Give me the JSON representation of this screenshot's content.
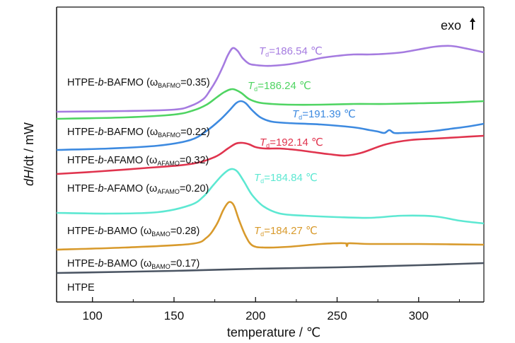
{
  "chart_data": {
    "type": "line",
    "xlabel": "temperature / ℃",
    "ylabel": "dH/dt / mW",
    "xlim": [
      78,
      340
    ],
    "xticks": [
      100,
      150,
      200,
      250,
      300
    ],
    "legend_note": "exo",
    "series": [
      {
        "name": "HTPE-b-BAFMO (ω_BAFMO=0.35)",
        "label_parts": [
          "HTPE-",
          "b",
          "-BAFMO (ω",
          "BAFMO",
          "=0.35)"
        ],
        "color": "#a57be0",
        "td": "T_d=186.54 ℃",
        "td_parts": [
          "T",
          "d",
          "=186.54 ℃"
        ],
        "x": [
          78,
          120,
          150,
          160,
          168,
          172,
          176,
          180,
          183,
          186,
          189,
          192,
          196,
          200,
          205,
          210,
          220,
          230,
          240,
          250,
          260,
          270,
          280,
          290,
          300,
          310,
          320,
          330,
          340
        ],
        "y": [
          158,
          157,
          155,
          150,
          140,
          128,
          113,
          94,
          78,
          68,
          72,
          82,
          90,
          92,
          93,
          93,
          91,
          87,
          82,
          79,
          77,
          77,
          76,
          74,
          70,
          66,
          65,
          69,
          74
        ]
      },
      {
        "name": "HTPE-b-BAFMO (ω_BAFMO=0.22)",
        "label_parts": [
          "HTPE-",
          "b",
          "-BAFMO (ω",
          "BAFMO",
          "=0.22)"
        ],
        "color": "#4fd462",
        "td": "T_d=186.24 ℃",
        "td_parts": [
          "T",
          "d",
          "=186.24 ℃"
        ],
        "x": [
          78,
          120,
          150,
          162,
          170,
          176,
          181,
          186,
          191,
          196,
          202,
          210,
          220,
          240,
          260,
          280,
          300,
          320,
          340
        ],
        "y": [
          168,
          166,
          162,
          156,
          148,
          138,
          130,
          126,
          131,
          140,
          145,
          147,
          148,
          148,
          147,
          147,
          146,
          145,
          143
        ]
      },
      {
        "name": "HTPE-b-AFAMO (ω_AFAMO=0.32)",
        "label_parts": [
          "HTPE-",
          "b",
          "-AFAMO (ω",
          "AFAMO",
          "=0.32)"
        ],
        "color": "#3d8ae0",
        "td": "T_d=191.39 ℃",
        "td_parts": [
          "T",
          "d",
          "=191.39 ℃"
        ],
        "x": [
          78,
          110,
          140,
          160,
          170,
          178,
          184,
          188,
          191,
          194,
          198,
          203,
          210,
          220,
          240,
          260,
          270,
          275,
          279,
          282,
          285,
          290,
          300,
          310,
          320,
          330,
          340
        ],
        "y": [
          212,
          210,
          206,
          198,
          185,
          170,
          156,
          146,
          143,
          146,
          156,
          166,
          172,
          174,
          176,
          180,
          184,
          186,
          188,
          184,
          188,
          188,
          187,
          185,
          182,
          179,
          175
        ]
      },
      {
        "name": "HTPE-b-AFAMO (ω_AFAMO=0.20)",
        "label_parts": [
          "HTPE-",
          "b",
          "-AFAMO (ω",
          "AFAMO",
          "=0.20)"
        ],
        "color": "#e0344e",
        "td": "T_d=192.14 ℃",
        "td_parts": [
          "T",
          "d",
          "=192.14 ℃"
        ],
        "x": [
          78,
          100,
          130,
          160,
          175,
          183,
          188,
          192,
          196,
          200,
          206,
          215,
          225,
          235,
          245,
          255,
          265,
          280,
          295,
          310,
          325,
          340
        ],
        "y": [
          246,
          243,
          238,
          232,
          222,
          210,
          203,
          202,
          204,
          208,
          210,
          210,
          212,
          215,
          218,
          220,
          216,
          204,
          198,
          196,
          194,
          192
        ]
      },
      {
        "name": "HTPE-b-BAMO (ω_BAMO=0.28)",
        "label_parts": [
          "HTPE-",
          "b",
          "-BAMO (ω",
          "BAMO",
          "=0.28)"
        ],
        "color": "#5de8d2",
        "td": "T_d=184.84 ℃",
        "td_parts": [
          "T",
          "d",
          "=184.84 ℃"
        ],
        "x": [
          78,
          110,
          140,
          160,
          168,
          174,
          179,
          183,
          186,
          189,
          193,
          198,
          205,
          215,
          230,
          250,
          270,
          290,
          310,
          325,
          340
        ],
        "y": [
          301,
          302,
          300,
          290,
          278,
          262,
          249,
          241,
          239,
          243,
          257,
          276,
          292,
          302,
          305,
          307,
          308,
          305,
          306,
          312,
          316
        ]
      },
      {
        "name": "HTPE-b-BAMO (ω_BAMO=0.17)",
        "label_parts": [
          "HTPE-",
          "b",
          "-BAMO (ω",
          "BAMO",
          "=0.17)"
        ],
        "color": "#d89a2c",
        "td": "T_d=184.27 ℃",
        "td_parts": [
          "T",
          "d",
          "=184.27 ℃"
        ],
        "x": [
          78,
          120,
          160,
          170,
          176,
          180,
          183,
          185,
          187,
          190,
          194,
          198,
          205,
          220,
          240,
          255,
          256,
          257,
          270,
          300,
          340
        ],
        "y": [
          353,
          350,
          345,
          336,
          318,
          298,
          287,
          286,
          292,
          312,
          334,
          347,
          350,
          349,
          345,
          344,
          348,
          344,
          345,
          345,
          346
        ]
      },
      {
        "name": "HTPE",
        "label_parts": [
          "HTPE",
          "",
          "",
          "",
          ""
        ],
        "color": "#4b5563",
        "td": "",
        "td_parts": [
          "",
          "",
          ""
        ],
        "x": [
          78,
          150,
          200,
          250,
          300,
          340
        ],
        "y": [
          386,
          383,
          380,
          378,
          375,
          372
        ]
      }
    ]
  }
}
